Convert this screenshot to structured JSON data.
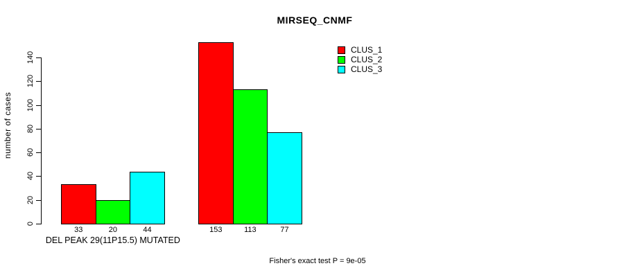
{
  "chart_data": {
    "type": "bar",
    "title": "MIRSEQ_CNMF",
    "ylabel": "number of cases",
    "xlabel": "",
    "ylim": [
      0,
      140
    ],
    "y_ticks": [
      0,
      20,
      40,
      60,
      80,
      100,
      120,
      140
    ],
    "grid": false,
    "background": "#ffffff",
    "categories": [
      "DEL PEAK 29(11P15.5) MUTATED",
      ""
    ],
    "series": [
      {
        "name": "CLUS_1",
        "color": "#ff0000",
        "values": [
          33,
          153
        ]
      },
      {
        "name": "CLUS_2",
        "color": "#00ff00",
        "values": [
          20,
          113
        ]
      },
      {
        "name": "CLUS_3",
        "color": "#00ffff",
        "values": [
          44,
          77
        ]
      }
    ],
    "bar_value_labels": [
      [
        33,
        20,
        44
      ],
      [
        153,
        113,
        77
      ]
    ],
    "legend_position": "top-right",
    "footnote": "Fisher's exact test P = 9e-05"
  }
}
